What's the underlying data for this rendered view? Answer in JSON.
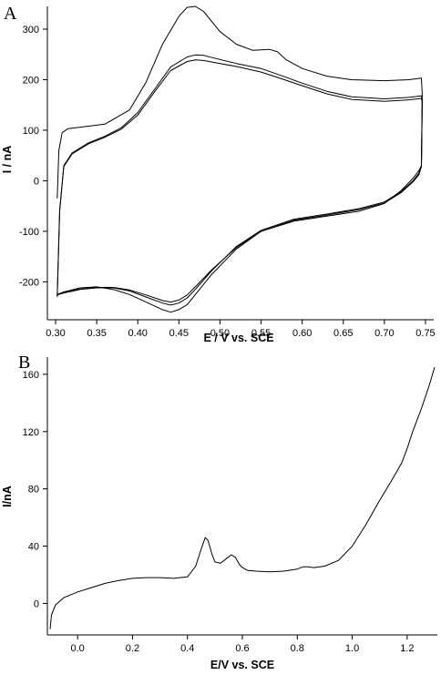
{
  "chart_data": [
    {
      "panel_label": "A",
      "type": "line",
      "xlabel": "E / V vs. SCE",
      "ylabel": "I / nA",
      "xlim": [
        0.29,
        0.76
      ],
      "ylim": [
        -275,
        345
      ],
      "xticks": [
        0.3,
        0.35,
        0.4,
        0.45,
        0.5,
        0.55,
        0.6,
        0.65,
        0.7,
        0.75
      ],
      "xtick_labels": [
        "0.30",
        "0.35",
        "0.40",
        "0.45",
        "0.50",
        "0.55",
        "0.60",
        "0.65",
        "0.70",
        "0.75"
      ],
      "yticks": [
        -200,
        -100,
        0,
        100,
        200,
        300
      ],
      "ytick_labels": [
        "-200",
        "-100",
        "0",
        "100",
        "200",
        "300"
      ],
      "grid": false,
      "series": [
        {
          "x": [
            0.302,
            0.304,
            0.308,
            0.315,
            0.33,
            0.36,
            0.39,
            0.41,
            0.43,
            0.45,
            0.46,
            0.47,
            0.48,
            0.5,
            0.52,
            0.54,
            0.56,
            0.57,
            0.58,
            0.6,
            0.63,
            0.66,
            0.7,
            0.73,
            0.745,
            0.746,
            0.745,
            0.742,
            0.735,
            0.72,
            0.7,
            0.67,
            0.63,
            0.59,
            0.55,
            0.52,
            0.49,
            0.47,
            0.46,
            0.45,
            0.44,
            0.43,
            0.41,
            0.39,
            0.37,
            0.35,
            0.33,
            0.31,
            0.302
          ],
          "y": [
            -35,
            60,
            95,
            103,
            106,
            112,
            140,
            195,
            270,
            325,
            343,
            345,
            335,
            295,
            270,
            258,
            260,
            255,
            240,
            222,
            207,
            200,
            198,
            200,
            203,
            170,
            30,
            20,
            5,
            -20,
            -45,
            -60,
            -70,
            -80,
            -100,
            -135,
            -185,
            -225,
            -245,
            -255,
            -260,
            -255,
            -240,
            -225,
            -215,
            -210,
            -212,
            -220,
            -225
          ]
        },
        {
          "x": [
            0.302,
            0.305,
            0.31,
            0.32,
            0.34,
            0.36,
            0.38,
            0.4,
            0.42,
            0.44,
            0.46,
            0.47,
            0.48,
            0.5,
            0.52,
            0.55,
            0.58,
            0.6,
            0.63,
            0.66,
            0.7,
            0.73,
            0.745,
            0.746,
            0.745,
            0.742,
            0.735,
            0.72,
            0.7,
            0.67,
            0.63,
            0.59,
            0.55,
            0.52,
            0.49,
            0.47,
            0.46,
            0.45,
            0.44,
            0.43,
            0.41,
            0.39,
            0.37,
            0.35,
            0.33,
            0.31,
            0.302
          ],
          "y": [
            -230,
            -60,
            30,
            55,
            75,
            88,
            105,
            135,
            180,
            225,
            245,
            249,
            248,
            240,
            232,
            222,
            205,
            193,
            177,
            166,
            162,
            165,
            168,
            160,
            30,
            15,
            0,
            -22,
            -42,
            -55,
            -66,
            -76,
            -98,
            -130,
            -178,
            -215,
            -232,
            -242,
            -246,
            -242,
            -230,
            -218,
            -212,
            -212,
            -215,
            -222,
            -226
          ]
        },
        {
          "x": [
            0.302,
            0.305,
            0.31,
            0.32,
            0.34,
            0.36,
            0.38,
            0.4,
            0.42,
            0.44,
            0.46,
            0.47,
            0.48,
            0.5,
            0.52,
            0.55,
            0.58,
            0.6,
            0.63,
            0.66,
            0.7,
            0.73,
            0.745,
            0.746,
            0.745,
            0.742,
            0.735,
            0.72,
            0.7,
            0.67,
            0.63,
            0.59,
            0.55,
            0.52,
            0.49,
            0.47,
            0.46,
            0.45,
            0.44,
            0.43,
            0.41,
            0.39,
            0.37,
            0.35,
            0.33,
            0.31,
            0.302
          ],
          "y": [
            -228,
            -58,
            28,
            53,
            73,
            86,
            102,
            130,
            175,
            218,
            236,
            239,
            238,
            232,
            226,
            215,
            199,
            188,
            172,
            161,
            157,
            160,
            163,
            155,
            28,
            12,
            -2,
            -24,
            -44,
            -57,
            -68,
            -78,
            -100,
            -132,
            -176,
            -210,
            -226,
            -236,
            -240,
            -237,
            -226,
            -216,
            -211,
            -211,
            -214,
            -221,
            -225
          ]
        }
      ]
    },
    {
      "panel_label": "B",
      "type": "line",
      "xlabel": "E/V vs. SCE",
      "ylabel": "I/nA",
      "xlim": [
        -0.11,
        1.31
      ],
      "ylim": [
        -22,
        172
      ],
      "xticks": [
        0.0,
        0.2,
        0.4,
        0.6,
        0.8,
        1.0,
        1.2
      ],
      "xtick_labels": [
        "0.0",
        "0.2",
        "0.4",
        "0.6",
        "0.8",
        "1.0",
        "1.2"
      ],
      "yticks": [
        0,
        40,
        80,
        120,
        160
      ],
      "ytick_labels": [
        "0",
        "40",
        "80",
        "120",
        "160"
      ],
      "grid": false,
      "series": [
        {
          "x": [
            -0.1,
            -0.095,
            -0.08,
            -0.05,
            0.0,
            0.05,
            0.1,
            0.15,
            0.2,
            0.25,
            0.3,
            0.35,
            0.4,
            0.43,
            0.45,
            0.465,
            0.475,
            0.49,
            0.5,
            0.52,
            0.54,
            0.56,
            0.575,
            0.59,
            0.6,
            0.62,
            0.65,
            0.7,
            0.75,
            0.8,
            0.82,
            0.84,
            0.86,
            0.9,
            0.95,
            1.0,
            1.05,
            1.1,
            1.15,
            1.18,
            1.2,
            1.22,
            1.25,
            1.28,
            1.3
          ],
          "y": [
            -18,
            -8,
            -1,
            4,
            8,
            11,
            14,
            16,
            17.5,
            18,
            18,
            17.5,
            18.5,
            26,
            38,
            46,
            44,
            34,
            29,
            28,
            31,
            34,
            32,
            27,
            25,
            23,
            22.5,
            22,
            22.5,
            24,
            25.5,
            25.5,
            25,
            26,
            30,
            40,
            55,
            72,
            88,
            98,
            108,
            120,
            135,
            152,
            165
          ]
        }
      ]
    }
  ]
}
